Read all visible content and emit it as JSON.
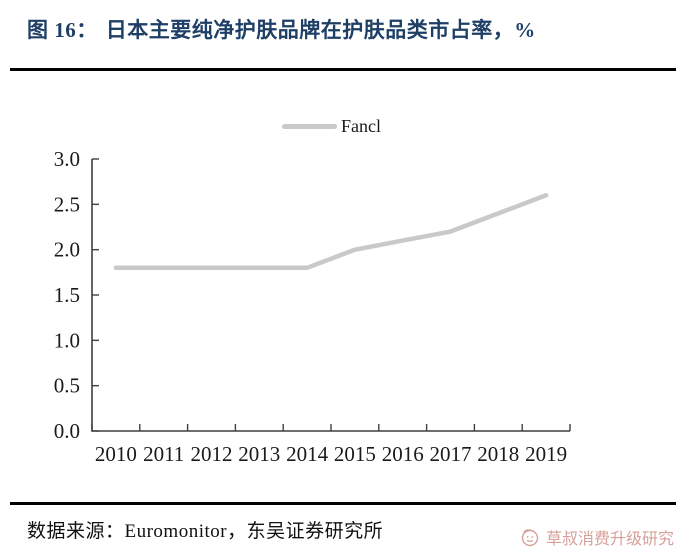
{
  "figure": {
    "title_prefix": "图 16：",
    "title_text": "日本主要纯净护肤品牌在护肤品类市占率，%"
  },
  "legend": {
    "label": "Fancl"
  },
  "footer": {
    "source_text": "数据来源：Euromonitor，东吴证券研究所",
    "watermark_text": "草叔消费升级研究"
  },
  "colors": {
    "title": "#1F3F66",
    "line": "#C9C9C9",
    "axis": "#3F3F3F",
    "label": "#1A1A1A",
    "rule": "#000000",
    "watermark": "#D09089"
  },
  "chart_data": {
    "type": "line",
    "title": "日本主要纯净护肤品牌在护肤品类市占率，%",
    "x": [
      "2010",
      "2011",
      "2012",
      "2013",
      "2014",
      "2015",
      "2016",
      "2017",
      "2018",
      "2019"
    ],
    "series": [
      {
        "name": "Fancl",
        "values": [
          1.8,
          1.8,
          1.8,
          1.8,
          1.8,
          2.0,
          2.1,
          2.2,
          2.4,
          2.6
        ]
      }
    ],
    "xlabel": "",
    "ylabel": "",
    "ylim": [
      0.0,
      3.0
    ],
    "yticks": [
      3.0,
      2.5,
      2.0,
      1.5,
      1.0,
      0.5,
      0.0
    ],
    "ytick_decimals": 1,
    "grid": false,
    "legend_position": "top-center"
  }
}
